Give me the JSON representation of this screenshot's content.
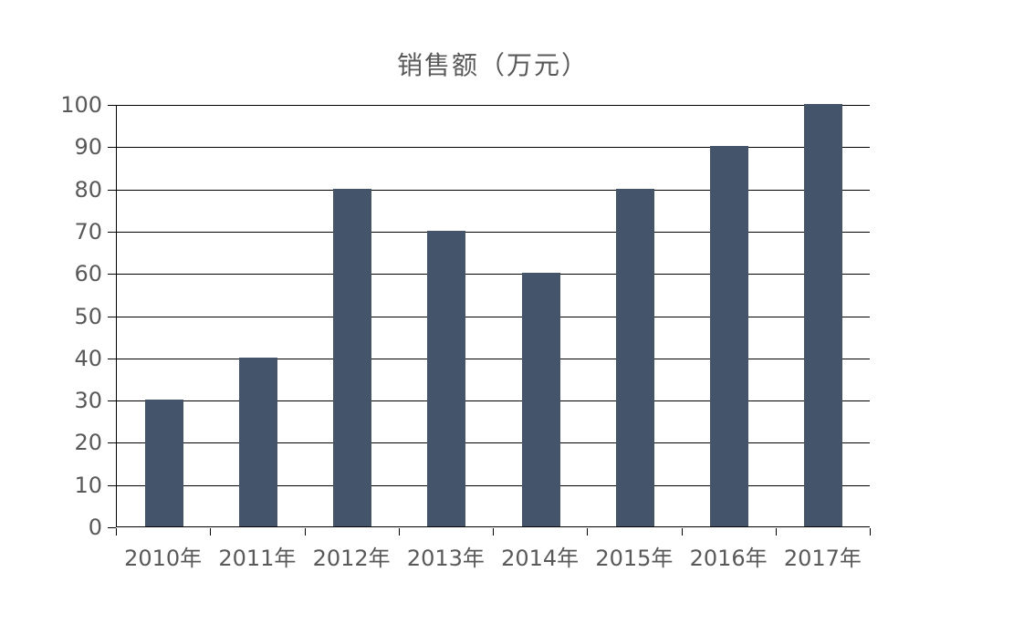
{
  "chart_data": {
    "type": "bar",
    "title": "销售额（万元）",
    "categories": [
      "2010年",
      "2011年",
      "2012年",
      "2013年",
      "2014年",
      "2015年",
      "2016年",
      "2017年"
    ],
    "values": [
      30,
      40,
      80,
      70,
      60,
      80,
      90,
      100
    ],
    "xlabel": "",
    "ylabel": "",
    "ylim": [
      0,
      100
    ],
    "y_ticks": [
      0,
      10,
      20,
      30,
      40,
      50,
      60,
      70,
      80,
      90,
      100
    ],
    "grid": true,
    "legend": "none",
    "colors": {
      "bar": "#44546A",
      "gridline": "#000000",
      "axis": "#000000",
      "text": "#595959",
      "background": "#FFFFFF"
    }
  }
}
